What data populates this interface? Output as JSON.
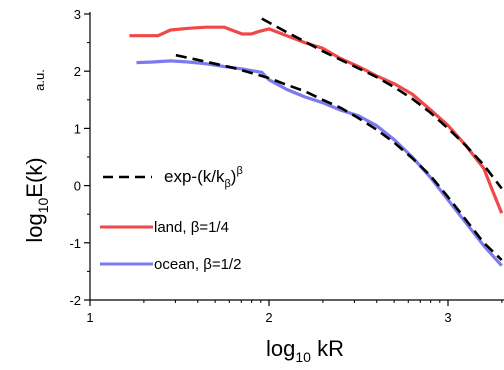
{
  "chart_data": {
    "type": "line",
    "xscale": "log",
    "xlim": [
      1,
      3.3
    ],
    "ylim": [
      -2,
      3
    ],
    "x_ticks": [
      "1",
      "2",
      "3"
    ],
    "y_ticks": [
      "-2",
      "-1",
      "0",
      "1",
      "2",
      "3"
    ],
    "xlabel": {
      "base": "log",
      "sub": "10",
      "rest": " kR"
    },
    "ylabel": {
      "base": "log",
      "sub": "10",
      "rest": "E(k)"
    },
    "unit": "a.u.",
    "legend": {
      "fit": {
        "pre": "exp-(k/k",
        "sub": "β",
        "post": ")",
        "sup": "β"
      },
      "land": "land, β=1/4",
      "ocean": "ocean, β=1/2"
    },
    "series": [
      {
        "key": "land",
        "color": "#f04848",
        "points": [
          [
            1.22,
            2.62
          ],
          [
            1.3,
            2.62
          ],
          [
            1.38,
            2.62
          ],
          [
            1.45,
            2.72
          ],
          [
            1.55,
            2.75
          ],
          [
            1.65,
            2.77
          ],
          [
            1.75,
            2.77
          ],
          [
            1.85,
            2.65
          ],
          [
            1.9,
            2.65
          ],
          [
            1.95,
            2.7
          ],
          [
            2.0,
            2.74
          ],
          [
            2.1,
            2.62
          ],
          [
            2.2,
            2.5
          ],
          [
            2.3,
            2.4
          ],
          [
            2.4,
            2.22
          ],
          [
            2.5,
            2.08
          ],
          [
            2.6,
            1.92
          ],
          [
            2.7,
            1.78
          ],
          [
            2.8,
            1.6
          ],
          [
            2.9,
            1.33
          ],
          [
            3.0,
            1.05
          ],
          [
            3.1,
            0.7
          ],
          [
            3.2,
            0.3
          ],
          [
            3.25,
            -0.1
          ],
          [
            3.3,
            -0.48
          ]
        ]
      },
      {
        "key": "ocean",
        "color": "#7b7bef",
        "points": [
          [
            1.26,
            2.15
          ],
          [
            1.35,
            2.16
          ],
          [
            1.45,
            2.18
          ],
          [
            1.55,
            2.16
          ],
          [
            1.65,
            2.13
          ],
          [
            1.75,
            2.08
          ],
          [
            1.85,
            2.04
          ],
          [
            1.92,
            2.0
          ],
          [
            1.96,
            1.98
          ],
          [
            2.0,
            1.85
          ],
          [
            2.1,
            1.68
          ],
          [
            2.2,
            1.55
          ],
          [
            2.3,
            1.45
          ],
          [
            2.4,
            1.32
          ],
          [
            2.5,
            1.22
          ],
          [
            2.6,
            1.05
          ],
          [
            2.7,
            0.8
          ],
          [
            2.8,
            0.5
          ],
          [
            2.9,
            0.15
          ],
          [
            3.0,
            -0.25
          ],
          [
            3.1,
            -0.65
          ],
          [
            3.2,
            -1.05
          ],
          [
            3.3,
            -1.4
          ]
        ]
      },
      {
        "key": "fit-land",
        "color": "#000000",
        "dashed": true,
        "points": [
          [
            1.96,
            2.92
          ],
          [
            2.1,
            2.68
          ],
          [
            2.2,
            2.52
          ],
          [
            2.3,
            2.35
          ],
          [
            2.4,
            2.2
          ],
          [
            2.5,
            2.05
          ],
          [
            2.6,
            1.9
          ],
          [
            2.7,
            1.72
          ],
          [
            2.8,
            1.52
          ],
          [
            2.9,
            1.28
          ],
          [
            3.0,
            1.0
          ],
          [
            3.1,
            0.7
          ],
          [
            3.2,
            0.36
          ],
          [
            3.3,
            -0.05
          ]
        ]
      },
      {
        "key": "fit-ocean",
        "color": "#000000",
        "dashed": true,
        "points": [
          [
            1.48,
            2.28
          ],
          [
            1.6,
            2.2
          ],
          [
            1.7,
            2.13
          ],
          [
            1.8,
            2.06
          ],
          [
            1.9,
            1.97
          ],
          [
            2.0,
            1.88
          ],
          [
            2.1,
            1.76
          ],
          [
            2.2,
            1.65
          ],
          [
            2.3,
            1.5
          ],
          [
            2.4,
            1.36
          ],
          [
            2.5,
            1.18
          ],
          [
            2.6,
            0.98
          ],
          [
            2.7,
            0.75
          ],
          [
            2.8,
            0.48
          ],
          [
            2.9,
            0.18
          ],
          [
            3.0,
            -0.2
          ],
          [
            3.1,
            -0.6
          ],
          [
            3.2,
            -1.0
          ],
          [
            3.3,
            -1.3
          ]
        ]
      }
    ]
  }
}
